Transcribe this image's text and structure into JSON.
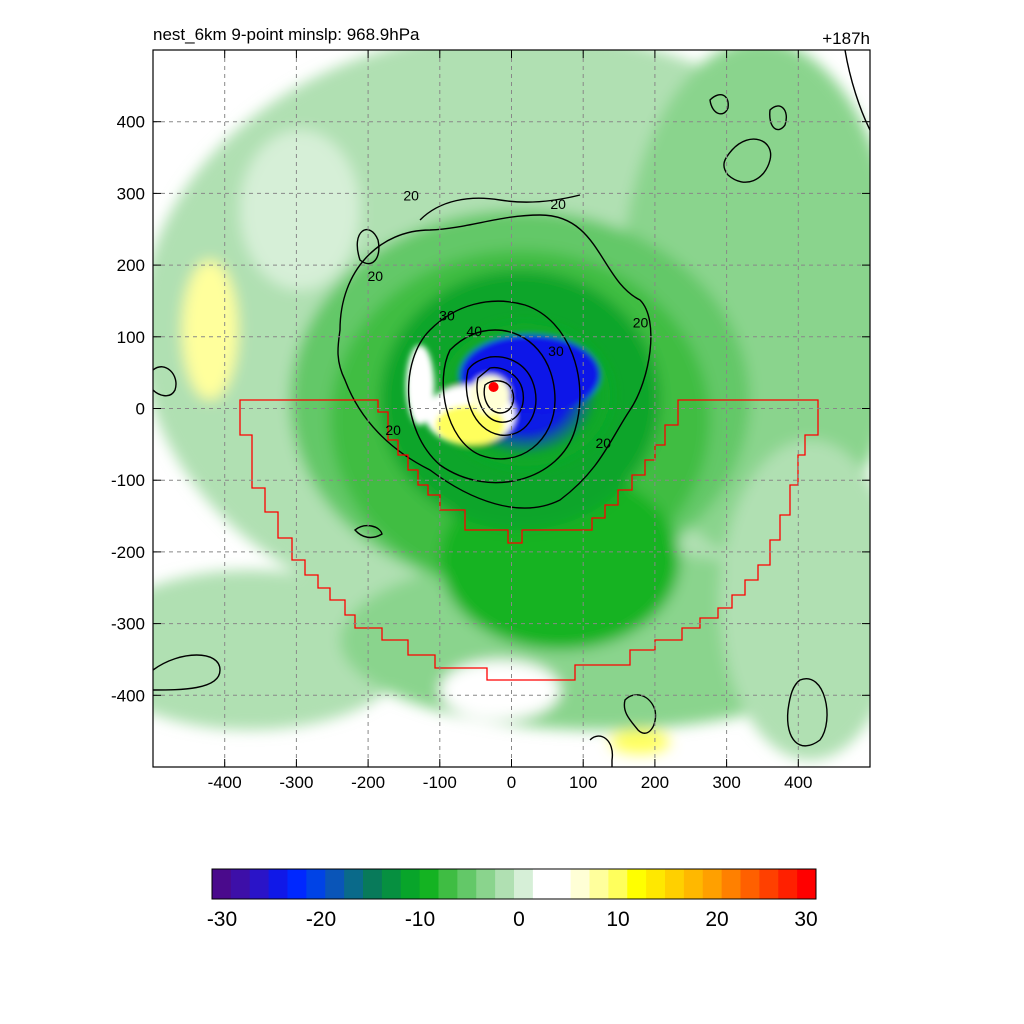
{
  "chart_data": {
    "type": "heatmap",
    "title_left": "nest_6km  9-point minslp: 968.9hPa",
    "title_right": "+187h",
    "x": {
      "min": -500,
      "max": 500,
      "ticks": [
        -400,
        -300,
        -200,
        -100,
        0,
        100,
        200,
        300,
        400
      ]
    },
    "y": {
      "min": -500,
      "max": 500,
      "ticks": [
        400,
        300,
        200,
        100,
        0,
        -100,
        -200,
        -300,
        -400
      ]
    },
    "grid": true,
    "colorbar": {
      "min": -30,
      "max": 30,
      "labels": [
        "-30",
        "-20",
        "-10",
        "0",
        "10",
        "20",
        "30"
      ],
      "colors": [
        "#4a0a8c",
        "#3d0fa8",
        "#2a14c8",
        "#1018e8",
        "#0028ff",
        "#0043e6",
        "#0a55b8",
        "#0a6a8a",
        "#087a5a",
        "#069040",
        "#08a52a",
        "#14b322",
        "#3fbd43",
        "#63c868",
        "#8ad48d",
        "#b0e0b2",
        "#d6efd7",
        "#ffffff",
        "#ffffff",
        "#ffffd6",
        "#ffff9c",
        "#ffff5c",
        "#ffff00",
        "#ffe800",
        "#ffd000",
        "#ffb800",
        "#ffa000",
        "#ff8000",
        "#ff6000",
        "#ff4000",
        "#ff2000",
        "#ff0000"
      ]
    },
    "center_marker": {
      "x": -25,
      "y": 30,
      "color": "#ff0000"
    },
    "contour_labels": [
      {
        "text": "20",
        "x": -190,
        "y": 185
      },
      {
        "text": "20",
        "x": -140,
        "y": 297
      },
      {
        "text": "20",
        "x": 65,
        "y": 285
      },
      {
        "text": "20",
        "x": 180,
        "y": 120
      },
      {
        "text": "20",
        "x": -165,
        "y": -30
      },
      {
        "text": "20",
        "x": 128,
        "y": -48
      },
      {
        "text": "30",
        "x": -90,
        "y": 130
      },
      {
        "text": "30",
        "x": 62,
        "y": 80
      },
      {
        "text": "40",
        "x": -52,
        "y": 108
      }
    ]
  }
}
